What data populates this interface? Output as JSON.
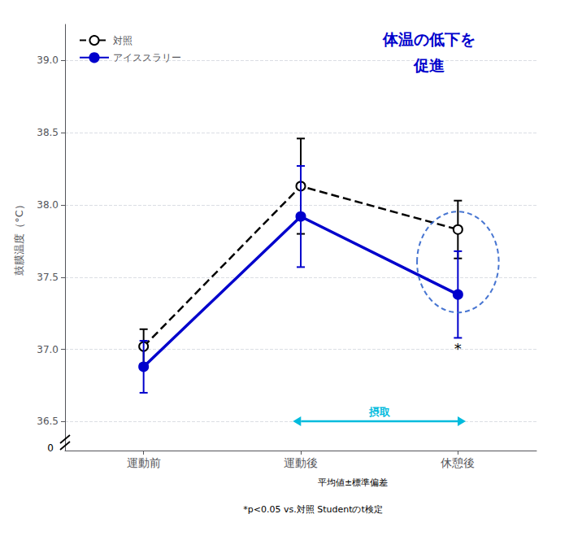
{
  "chart_data": {
    "type": "line",
    "categories": [
      "運動前",
      "運動後",
      "休憩後"
    ],
    "series": [
      {
        "name": "対照",
        "color": "#000000",
        "values": [
          37.02,
          38.13,
          37.83
        ],
        "errors": [
          0.12,
          0.33,
          0.2
        ],
        "line_style": "dashed",
        "marker": "open_circle"
      },
      {
        "name": "アイススラリー",
        "color": "#0000CC",
        "values": [
          36.88,
          37.92,
          37.38
        ],
        "errors": [
          0.18,
          0.35,
          0.3
        ],
        "line_style": "solid",
        "marker": "circle"
      }
    ],
    "ylabel": "鼓膜温度（°C）",
    "ylim": [
      36.3,
      39.25
    ],
    "yticks": [
      36.5,
      {
        "value": 37,
        "label": "37.0"
      },
      37.5,
      {
        "value": 38,
        "label": "38.0"
      },
      38.5,
      {
        "value": 39,
        "label": "39.0"
      }
    ],
    "grid": true,
    "legend": "upper left",
    "annotations": [
      "体温の低下を",
      "促進",
      "*",
      "摂取",
      "0",
      "平均値±標準偏差",
      "*p<0.05 vs.対照 Studentのt検定"
    ]
  }
}
